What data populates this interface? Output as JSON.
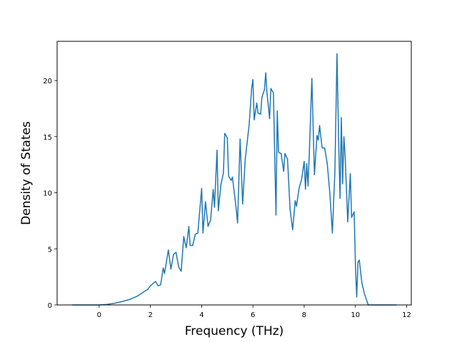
{
  "chart_data": {
    "type": "line",
    "title": "",
    "xlabel": "Frequency (THz)",
    "ylabel": "Density of States",
    "xlim": [
      -1.64,
      12.18
    ],
    "ylim": [
      0,
      23.5
    ],
    "xticks": [
      0,
      2,
      4,
      6,
      8,
      10,
      12
    ],
    "yticks": [
      0,
      5,
      10,
      15,
      20
    ],
    "grid": false,
    "legend": "none",
    "series": [
      {
        "color": "#1f77b4",
        "points": [
          [
            -1.05,
            0.0
          ],
          [
            0.0,
            0.0
          ],
          [
            0.3,
            0.05
          ],
          [
            0.6,
            0.15
          ],
          [
            0.9,
            0.3
          ],
          [
            1.2,
            0.5
          ],
          [
            1.5,
            0.8
          ],
          [
            1.7,
            1.1
          ],
          [
            1.9,
            1.4
          ],
          [
            2.0,
            1.7
          ],
          [
            2.2,
            2.1
          ],
          [
            2.3,
            1.7
          ],
          [
            2.4,
            1.8
          ],
          [
            2.5,
            3.3
          ],
          [
            2.55,
            2.8
          ],
          [
            2.7,
            4.9
          ],
          [
            2.8,
            3.2
          ],
          [
            2.9,
            4.5
          ],
          [
            3.0,
            4.7
          ],
          [
            3.1,
            3.4
          ],
          [
            3.2,
            3.0
          ],
          [
            3.3,
            6.1
          ],
          [
            3.4,
            5.1
          ],
          [
            3.5,
            7.0
          ],
          [
            3.55,
            5.3
          ],
          [
            3.65,
            5.3
          ],
          [
            3.75,
            6.3
          ],
          [
            3.85,
            6.4
          ],
          [
            4.0,
            10.4
          ],
          [
            4.05,
            6.4
          ],
          [
            4.15,
            9.2
          ],
          [
            4.25,
            7.0
          ],
          [
            4.35,
            7.6
          ],
          [
            4.45,
            10.3
          ],
          [
            4.5,
            8.7
          ],
          [
            4.6,
            13.8
          ],
          [
            4.65,
            8.4
          ],
          [
            4.75,
            10.7
          ],
          [
            4.85,
            11.8
          ],
          [
            4.9,
            15.3
          ],
          [
            5.0,
            14.9
          ],
          [
            5.05,
            11.5
          ],
          [
            5.15,
            11.1
          ],
          [
            5.2,
            11.4
          ],
          [
            5.35,
            8.5
          ],
          [
            5.4,
            7.3
          ],
          [
            5.5,
            14.8
          ],
          [
            5.6,
            9.0
          ],
          [
            5.7,
            13.0
          ],
          [
            5.85,
            16.0
          ],
          [
            5.95,
            19.3
          ],
          [
            6.0,
            20.1
          ],
          [
            6.05,
            16.5
          ],
          [
            6.15,
            18.0
          ],
          [
            6.2,
            17.1
          ],
          [
            6.3,
            17.0
          ],
          [
            6.35,
            18.5
          ],
          [
            6.45,
            19.2
          ],
          [
            6.5,
            20.7
          ],
          [
            6.55,
            18.9
          ],
          [
            6.65,
            16.6
          ],
          [
            6.7,
            19.3
          ],
          [
            6.8,
            18.9
          ],
          [
            6.9,
            8.0
          ],
          [
            6.95,
            17.3
          ],
          [
            7.0,
            13.6
          ],
          [
            7.1,
            13.5
          ],
          [
            7.2,
            11.9
          ],
          [
            7.25,
            13.5
          ],
          [
            7.35,
            13.0
          ],
          [
            7.45,
            8.5
          ],
          [
            7.55,
            6.7
          ],
          [
            7.65,
            9.3
          ],
          [
            7.7,
            8.8
          ],
          [
            7.8,
            10.4
          ],
          [
            7.9,
            11.2
          ],
          [
            8.0,
            12.8
          ],
          [
            8.05,
            10.3
          ],
          [
            8.1,
            12.6
          ],
          [
            8.15,
            10.6
          ],
          [
            8.2,
            13.5
          ],
          [
            8.3,
            20.2
          ],
          [
            8.4,
            11.6
          ],
          [
            8.5,
            15.1
          ],
          [
            8.55,
            14.7
          ],
          [
            8.6,
            16.0
          ],
          [
            8.7,
            14.0
          ],
          [
            8.8,
            14.0
          ],
          [
            8.9,
            12.6
          ],
          [
            9.0,
            10.0
          ],
          [
            9.1,
            6.4
          ],
          [
            9.2,
            12.0
          ],
          [
            9.28,
            22.4
          ],
          [
            9.35,
            14.0
          ],
          [
            9.4,
            9.5
          ],
          [
            9.45,
            16.7
          ],
          [
            9.5,
            10.8
          ],
          [
            9.55,
            15.0
          ],
          [
            9.6,
            13.2
          ],
          [
            9.7,
            7.4
          ],
          [
            9.8,
            11.7
          ],
          [
            9.85,
            7.8
          ],
          [
            9.95,
            8.3
          ],
          [
            10.0,
            3.5
          ],
          [
            10.05,
            0.7
          ],
          [
            10.1,
            3.8
          ],
          [
            10.15,
            4.0
          ],
          [
            10.25,
            2.0
          ],
          [
            10.35,
            1.0
          ],
          [
            10.5,
            0.0
          ],
          [
            11.6,
            0.0
          ]
        ]
      }
    ]
  }
}
